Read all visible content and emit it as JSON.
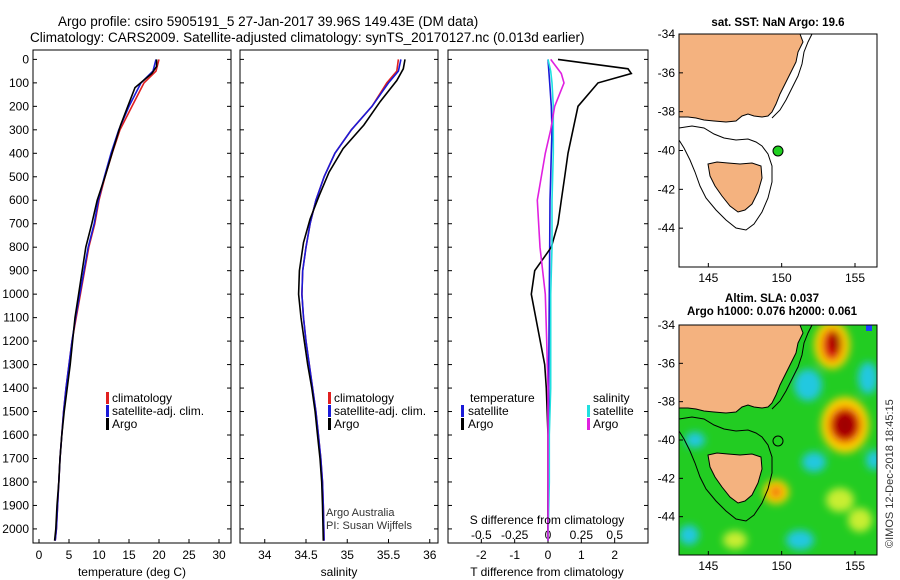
{
  "figure": {
    "title_line1": "Argo profile: csiro 5905191_5 27-Jan-2017 39.96S 149.43E (DM data)",
    "title_line2": "Climatology: CARS2009. Satellite-adjusted climatology: synTS_20170127.nc (0.013d earlier)"
  },
  "panels": {
    "temperature": {
      "xlabel": "temperature (deg C)",
      "legend": [
        "climatology",
        "satellite-adj. clim.",
        "Argo"
      ]
    },
    "salinity": {
      "xlabel": "salinity",
      "legend": [
        "climatology",
        "satellite-adj. clim.",
        "Argo"
      ],
      "credit_line1": "Argo Australia",
      "credit_line2": "PI: Susan Wijffels"
    },
    "difference": {
      "xlabel": "T difference from climatology",
      "s_axis_label": "S difference from climatology",
      "legend_temperature": {
        "title": "temperature",
        "items": [
          "satellite",
          "Argo"
        ]
      },
      "legend_salinity": {
        "title": "salinity",
        "items": [
          "satellite",
          "Argo"
        ]
      }
    }
  },
  "maps": {
    "sst": {
      "title": "sat. SST: NaN Argo: 19.6"
    },
    "sla": {
      "title_line1": "Altim. SLA: 0.037",
      "title_line2": "Argo h1000: 0.076 h2000: 0.061"
    }
  },
  "watermark": "©IMOS 12-Dec-2018 18:45:15",
  "colors": {
    "climatology": "#e02020",
    "satellite": "#1a1ad8",
    "argo": "#000000",
    "s_satellite": "#20e0e0",
    "s_argo": "#e020e0",
    "land": "#f4b27f",
    "argo_marker": "#20d020"
  },
  "chart_data": [
    {
      "type": "line",
      "xlabel": "temperature (deg C)",
      "ylabel": "",
      "xlim": [
        -1,
        32
      ],
      "ylim": [
        2060,
        -40
      ],
      "xticks": [
        0,
        5,
        10,
        15,
        20,
        25,
        30
      ],
      "yticks": [
        0,
        100,
        200,
        300,
        400,
        500,
        600,
        700,
        800,
        900,
        1000,
        1100,
        1200,
        1300,
        1400,
        1500,
        1600,
        1700,
        1800,
        1900,
        2000
      ],
      "series": [
        {
          "name": "climatology",
          "color": "#e02020",
          "x": [
            20.0,
            19.5,
            17.5,
            15.5,
            13.5,
            12.2,
            11.0,
            10.0,
            9.3,
            8.3,
            7.6,
            6.9,
            6.2,
            5.5,
            5.0,
            4.5,
            4.1,
            3.8,
            3.5,
            3.3,
            3.1,
            2.9,
            2.7
          ],
          "y": [
            0,
            50,
            100,
            200,
            300,
            400,
            500,
            600,
            700,
            800,
            900,
            1000,
            1100,
            1200,
            1300,
            1400,
            1500,
            1600,
            1700,
            1800,
            1900,
            2000,
            2050
          ]
        },
        {
          "name": "satellite-adj. clim.",
          "color": "#1a1ad8",
          "x": [
            19.5,
            19.0,
            17.0,
            15.0,
            13.3,
            12.0,
            10.9,
            9.9,
            9.2,
            8.2,
            7.5,
            6.8,
            6.1,
            5.5,
            5.0,
            4.5,
            4.1,
            3.8,
            3.5,
            3.3,
            3.1,
            2.9,
            2.7
          ],
          "y": [
            0,
            50,
            100,
            200,
            300,
            400,
            500,
            600,
            700,
            800,
            900,
            1000,
            1100,
            1200,
            1300,
            1400,
            1500,
            1600,
            1700,
            1800,
            1900,
            2000,
            2050
          ]
        },
        {
          "name": "Argo",
          "color": "#000000",
          "x": [
            19.6,
            19.6,
            18.8,
            16.0,
            14.8,
            13.6,
            12.4,
            11.0,
            9.7,
            8.8,
            7.8,
            6.6,
            6.0,
            5.6,
            5.2,
            4.7,
            4.2,
            3.8,
            3.5,
            3.3,
            3.0,
            2.8,
            2.6
          ],
          "y": [
            0,
            30,
            60,
            120,
            200,
            280,
            380,
            500,
            600,
            700,
            800,
            1000,
            1100,
            1200,
            1300,
            1400,
            1500,
            1600,
            1700,
            1800,
            1900,
            2000,
            2050
          ]
        }
      ]
    },
    {
      "type": "line",
      "xlabel": "salinity",
      "xlim": [
        33.7,
        36.1
      ],
      "ylim": [
        2060,
        -40
      ],
      "xticks": [
        34,
        34.5,
        35,
        35.5,
        36
      ],
      "series": [
        {
          "name": "climatology",
          "color": "#e02020",
          "x": [
            35.62,
            35.6,
            35.48,
            35.3,
            35.05,
            34.85,
            34.72,
            34.62,
            34.55,
            34.5,
            34.46,
            34.45,
            34.47,
            34.5,
            34.54,
            34.58,
            34.62,
            34.65,
            34.68,
            34.7,
            34.71,
            34.72
          ],
          "y": [
            0,
            50,
            100,
            200,
            300,
            400,
            500,
            600,
            700,
            800,
            900,
            1000,
            1100,
            1200,
            1300,
            1400,
            1500,
            1600,
            1700,
            1800,
            1900,
            2050
          ]
        },
        {
          "name": "satellite-adj. clim.",
          "color": "#1a1ad8",
          "x": [
            35.65,
            35.62,
            35.5,
            35.3,
            35.05,
            34.85,
            34.72,
            34.62,
            34.55,
            34.5,
            34.46,
            34.45,
            34.47,
            34.5,
            34.54,
            34.58,
            34.62,
            34.65,
            34.68,
            34.7,
            34.71,
            34.72
          ],
          "y": [
            0,
            50,
            100,
            200,
            300,
            400,
            500,
            600,
            700,
            800,
            900,
            1000,
            1100,
            1200,
            1300,
            1400,
            1500,
            1600,
            1700,
            1800,
            1900,
            2050
          ]
        },
        {
          "name": "Argo",
          "color": "#000000",
          "x": [
            35.7,
            35.68,
            35.6,
            35.4,
            35.2,
            34.95,
            34.78,
            34.66,
            34.55,
            34.47,
            34.42,
            34.41,
            34.44,
            34.48,
            34.52,
            34.57,
            34.61,
            34.64,
            34.67,
            34.69,
            34.7,
            34.71
          ],
          "y": [
            0,
            40,
            90,
            180,
            280,
            380,
            480,
            580,
            680,
            780,
            900,
            1000,
            1100,
            1200,
            1300,
            1400,
            1500,
            1600,
            1700,
            1800,
            1900,
            2050
          ]
        }
      ]
    },
    {
      "type": "line",
      "xlabel": "T difference from climatology",
      "xlim": [
        -3,
        3
      ],
      "ylim": [
        2060,
        -40
      ],
      "xticks": [
        -2,
        -1,
        0,
        1,
        2
      ],
      "s_axis_label": "S difference from climatology",
      "s_xticks": [
        -0.5,
        -0.25,
        0,
        0.25,
        0.5
      ],
      "s_xtick_labels": [
        "-0.5",
        "-0.25",
        "0",
        "0.25",
        "0.5"
      ],
      "series": [
        {
          "name": "T satellite",
          "color": "#1a1ad8",
          "x": [
            0.0,
            0.05,
            0.1,
            0.12,
            0.1,
            0.08,
            0.06,
            0.05,
            0.04,
            0.03,
            0.02,
            0.02,
            0.01,
            0.01,
            0.0,
            0.0
          ],
          "y": [
            0,
            100,
            200,
            300,
            400,
            500,
            600,
            800,
            1000,
            1200,
            1400,
            1500,
            1600,
            1800,
            1900,
            2050
          ]
        },
        {
          "name": "T Argo",
          "color": "#000000",
          "x": [
            0.3,
            2.4,
            2.5,
            1.5,
            0.9,
            0.75,
            0.6,
            0.5,
            0.4,
            0.3,
            0.1,
            -0.4,
            -0.5,
            -0.3,
            -0.1,
            -0.05,
            0.0,
            0.0
          ],
          "y": [
            0,
            40,
            60,
            100,
            200,
            300,
            400,
            500,
            600,
            700,
            800,
            900,
            1000,
            1150,
            1300,
            1400,
            1600,
            2050
          ]
        },
        {
          "name": "S satellite",
          "color": "#20e0e0",
          "x": [
            0.0,
            0.02,
            0.03,
            0.04,
            0.04,
            0.03,
            0.03,
            0.02,
            0.02,
            0.02,
            0.01,
            0.01,
            0.0
          ],
          "y": [
            0,
            50,
            100,
            200,
            400,
            600,
            800,
            1000,
            1200,
            1400,
            1600,
            1800,
            2050
          ]
        },
        {
          "name": "S Argo",
          "color": "#e020e0",
          "x": [
            0.02,
            0.1,
            0.12,
            0.05,
            0.02,
            -0.02,
            -0.05,
            -0.08,
            -0.06,
            -0.02,
            -0.01,
            0.0,
            0.0
          ],
          "y": [
            0,
            60,
            100,
            200,
            300,
            400,
            500,
            600,
            800,
            1000,
            1200,
            1400,
            2050
          ]
        }
      ]
    },
    {
      "type": "heatmap",
      "title": "sat. SST: NaN Argo: 19.6",
      "xlim": [
        143,
        156.5
      ],
      "ylim": [
        -46,
        -34
      ],
      "xticks": [
        145,
        150,
        155
      ],
      "yticks": [
        -34,
        -36,
        -38,
        -40,
        -42,
        -44
      ],
      "marker": {
        "lon": 149.43,
        "lat": -39.96
      }
    },
    {
      "type": "heatmap",
      "title": "Altim. SLA: 0.037",
      "subtitle": "Argo h1000: 0.076 h2000: 0.061",
      "xlim": [
        143,
        156.5
      ],
      "ylim": [
        -46,
        -34
      ],
      "xticks": [
        145,
        150,
        155
      ],
      "yticks": [
        -34,
        -36,
        -38,
        -40,
        -42,
        -44
      ],
      "marker": {
        "lon": 149.43,
        "lat": -39.96
      }
    }
  ]
}
